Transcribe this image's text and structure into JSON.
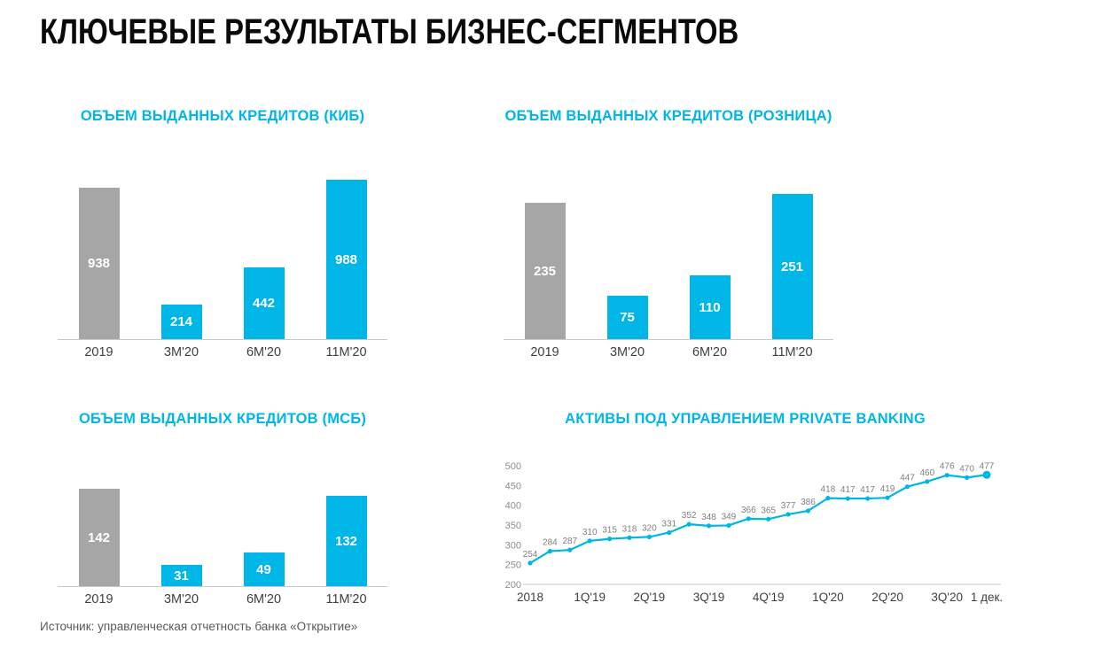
{
  "page": {
    "title": "КЛЮЧЕВЫЕ РЕЗУЛЬТАТЫ БИЗНЕС-СЕГМЕНТОВ",
    "source": "Источник: управленческая отчетность банка «Открытие»"
  },
  "colors": {
    "accent": "#00b6e6",
    "gray_bar": "#a6a6a6",
    "axis": "#c9c9c9",
    "category_label": "#3f3f3f",
    "value_label": "#ffffff",
    "point_label": "#7f7f7f",
    "tick_label": "#8c8c8c"
  },
  "chart_data": [
    {
      "type": "bar",
      "title": "ОБЪЕМ ВЫДАННЫХ КРЕДИТОВ (КИБ)",
      "categories": [
        "2019",
        "3M'20",
        "6M'20",
        "11M'20"
      ],
      "values": [
        938,
        214,
        442,
        988
      ],
      "bar_colors": [
        "gray",
        "accent",
        "accent",
        "accent"
      ],
      "grid": false,
      "legend": false
    },
    {
      "type": "bar",
      "title": "ОБЪЕМ ВЫДАННЫХ КРЕДИТОВ (РОЗНИЦА)",
      "categories": [
        "2019",
        "3M'20",
        "6M'20",
        "11M'20"
      ],
      "values": [
        235,
        75,
        110,
        251
      ],
      "bar_colors": [
        "gray",
        "accent",
        "accent",
        "accent"
      ],
      "grid": false,
      "legend": false
    },
    {
      "type": "bar",
      "title": "ОБЪЕМ ВЫДАННЫХ КРЕДИТОВ (МСБ)",
      "categories": [
        "2019",
        "3M'20",
        "6M'20",
        "11M'20"
      ],
      "values": [
        142,
        31,
        49,
        132
      ],
      "bar_colors": [
        "gray",
        "accent",
        "accent",
        "accent"
      ],
      "grid": false,
      "legend": false
    },
    {
      "type": "line",
      "title": "АКТИВЫ ПОД УПРАВЛЕНИЕМ PRIVATE BANKING",
      "values": [
        254,
        284,
        287,
        310,
        315,
        318,
        320,
        331,
        352,
        348,
        349,
        366,
        365,
        377,
        386,
        418,
        417,
        417,
        419,
        447,
        460,
        476,
        470,
        477
      ],
      "x_labels": [
        "2018",
        "1Q'19",
        "2Q'19",
        "3Q'19",
        "4Q'19",
        "1Q'20",
        "2Q'20",
        "3Q'20",
        "1 дек."
      ],
      "x_label_points": [
        0,
        3,
        6,
        9,
        12,
        15,
        18,
        21,
        23
      ],
      "y_ticks": [
        200,
        250,
        300,
        350,
        400,
        450,
        500
      ],
      "ylim": [
        200,
        500
      ],
      "grid": false,
      "legend": false
    }
  ]
}
